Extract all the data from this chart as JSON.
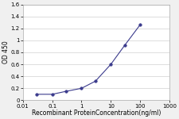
{
  "x": [
    0.03,
    0.1,
    0.3,
    1,
    3,
    10,
    30,
    100
  ],
  "y": [
    0.1,
    0.1,
    0.15,
    0.2,
    0.32,
    0.6,
    0.92,
    1.26
  ],
  "line_color": "#3a3a8c",
  "marker": "o",
  "marker_size": 2.5,
  "marker_facecolor": "#3a3a8c",
  "xlabel": "Recombinant ProteinConcentration(ng/ml)",
  "ylabel": "OD 450",
  "ylim": [
    0,
    1.6
  ],
  "yticks": [
    0,
    0.2,
    0.4,
    0.6,
    0.8,
    1.0,
    1.2,
    1.4,
    1.6
  ],
  "ytick_labels": [
    "0",
    "0.2",
    "0.4",
    "0.6",
    "0.8",
    "1",
    "1.2",
    "1.4",
    "1.6"
  ],
  "xticks": [
    0.01,
    0.1,
    1,
    10,
    100,
    1000
  ],
  "xtick_labels": [
    "0.01",
    "0.1",
    "1",
    "10",
    "100",
    "1000"
  ],
  "background_color": "#f0f0f0",
  "plot_bg_color": "#ffffff",
  "grid_color": "#d0d0d0",
  "label_fontsize": 5.5,
  "tick_fontsize": 5.0,
  "linewidth": 0.8
}
